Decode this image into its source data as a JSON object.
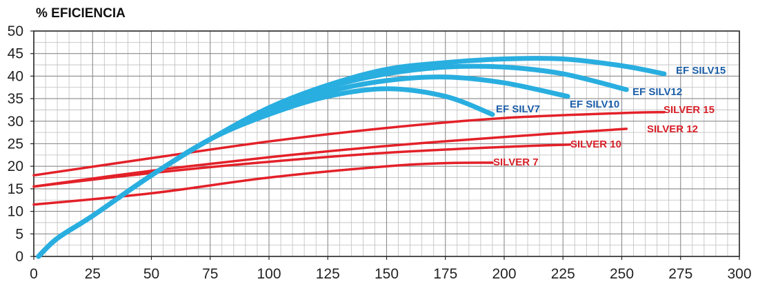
{
  "chart_data": {
    "type": "line",
    "title": "% EFICIENCIA",
    "xlabel": "",
    "ylabel": "",
    "xlim": [
      0,
      300
    ],
    "ylim": [
      0,
      50
    ],
    "x_ticks": [
      "0",
      "25",
      "50",
      "75",
      "100",
      "125",
      "150",
      "175",
      "200",
      "225",
      "250",
      "275",
      "300"
    ],
    "y_ticks": [
      "0",
      "5",
      "10",
      "15",
      "20",
      "25",
      "30",
      "35",
      "40",
      "45",
      "50"
    ],
    "grid": true,
    "series": [
      {
        "name": "EF SILV7",
        "color": "#29aee0",
        "points": [
          [
            2,
            0
          ],
          [
            10,
            4
          ],
          [
            25,
            9
          ],
          [
            50,
            18
          ],
          [
            75,
            26
          ],
          [
            100,
            31.5
          ],
          [
            125,
            35.5
          ],
          [
            150,
            37.2
          ],
          [
            175,
            35.5
          ],
          [
            195,
            31.5
          ]
        ]
      },
      {
        "name": "EF SILV10",
        "color": "#29aee0",
        "points": [
          [
            2,
            0
          ],
          [
            10,
            4
          ],
          [
            25,
            9
          ],
          [
            50,
            18
          ],
          [
            75,
            26
          ],
          [
            100,
            32
          ],
          [
            125,
            36.5
          ],
          [
            150,
            39
          ],
          [
            175,
            39.8
          ],
          [
            200,
            38.5
          ],
          [
            227,
            35.5
          ]
        ]
      },
      {
        "name": "EF SILV12",
        "color": "#29aee0",
        "points": [
          [
            2,
            0
          ],
          [
            10,
            4
          ],
          [
            25,
            9
          ],
          [
            50,
            18
          ],
          [
            75,
            26
          ],
          [
            100,
            32.5
          ],
          [
            125,
            37.5
          ],
          [
            150,
            40.5
          ],
          [
            175,
            42
          ],
          [
            200,
            42
          ],
          [
            225,
            40.5
          ],
          [
            252,
            37
          ]
        ]
      },
      {
        "name": "EF SILV15",
        "color": "#29aee0",
        "points": [
          [
            2,
            0
          ],
          [
            10,
            4
          ],
          [
            25,
            9
          ],
          [
            50,
            18
          ],
          [
            75,
            26
          ],
          [
            100,
            33
          ],
          [
            125,
            38
          ],
          [
            150,
            41.5
          ],
          [
            175,
            43
          ],
          [
            200,
            43.8
          ],
          [
            225,
            43.8
          ],
          [
            250,
            42.3
          ],
          [
            268,
            40.5
          ]
        ]
      },
      {
        "name": "SILVER 7",
        "color": "#e32129",
        "points": [
          [
            0,
            11.5
          ],
          [
            50,
            14
          ],
          [
            100,
            17.5
          ],
          [
            150,
            20
          ],
          [
            175,
            20.7
          ],
          [
            195,
            20.8
          ]
        ]
      },
      {
        "name": "SILVER 10",
        "color": "#e32129",
        "points": [
          [
            0,
            15.5
          ],
          [
            50,
            18.5
          ],
          [
            100,
            21
          ],
          [
            150,
            23
          ],
          [
            200,
            24.3
          ],
          [
            228,
            24.8
          ]
        ]
      },
      {
        "name": "SILVER 12",
        "color": "#e32129",
        "points": [
          [
            0,
            15.5
          ],
          [
            50,
            19
          ],
          [
            100,
            22
          ],
          [
            150,
            24.5
          ],
          [
            200,
            26.5
          ],
          [
            252,
            28.3
          ]
        ]
      },
      {
        "name": "SILVER 15",
        "color": "#e32129",
        "points": [
          [
            0,
            18
          ],
          [
            50,
            21.8
          ],
          [
            100,
            25.5
          ],
          [
            150,
            28.5
          ],
          [
            200,
            30.7
          ],
          [
            250,
            31.8
          ],
          [
            268,
            32
          ]
        ]
      }
    ]
  }
}
